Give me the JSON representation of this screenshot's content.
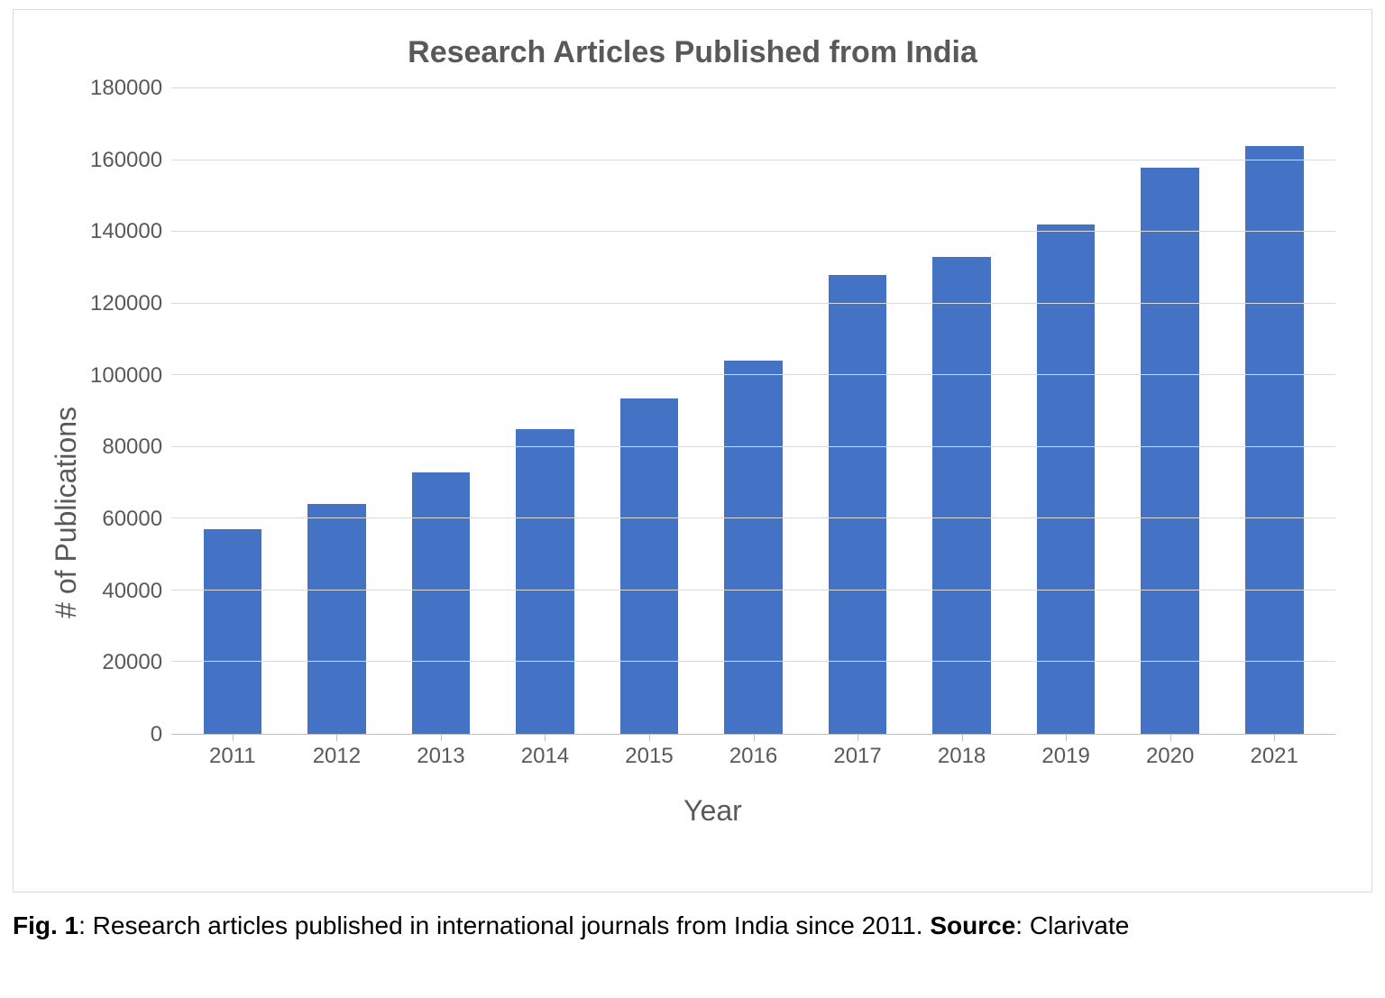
{
  "chart": {
    "type": "bar",
    "title": "Research Articles Published from India",
    "title_fontsize": 34,
    "title_color": "#595959",
    "title_weight": "bold",
    "x_categories": [
      "2011",
      "2012",
      "2013",
      "2014",
      "2015",
      "2016",
      "2017",
      "2018",
      "2019",
      "2020",
      "2021"
    ],
    "values": [
      57000,
      64000,
      73000,
      85000,
      93500,
      104000,
      128000,
      133000,
      142000,
      158000,
      164000
    ],
    "bar_color": "#4472c4",
    "bar_width": 0.56,
    "y_axis": {
      "label": "# of Publications",
      "label_fontsize": 32,
      "min": 0,
      "max": 180000,
      "tick_step": 20000,
      "tick_fontsize": 24,
      "tick_color": "#595959"
    },
    "x_axis": {
      "label": "Year",
      "label_fontsize": 32,
      "tick_fontsize": 24,
      "tick_color": "#595959"
    },
    "background_color": "#ffffff",
    "grid_color": "#d9d9d9",
    "axis_line_color": "#bfbfbf",
    "frame_border_color": "#d9d9d9"
  },
  "caption": {
    "fig_label": "Fig. 1",
    "text_before_source": ": Research articles published in international journals from India since 2011. ",
    "source_label": "Source",
    "source_text": ": Clarivate",
    "fontsize": 28,
    "color": "#000000"
  }
}
